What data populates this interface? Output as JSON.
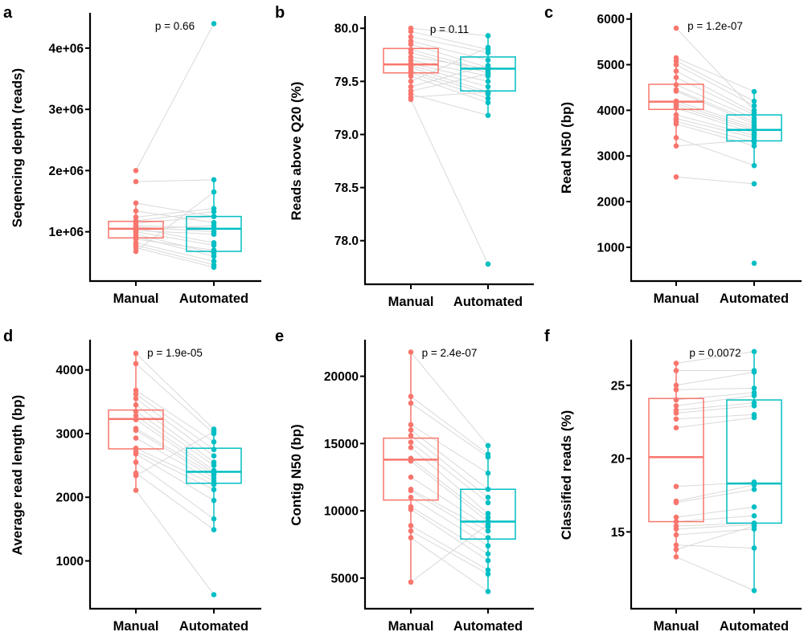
{
  "figure": {
    "colors": {
      "manual": "#F8766D",
      "automated": "#00BFC4",
      "pair_line": "#d9d9d9",
      "axis": "#000000"
    }
  },
  "chart_data": [
    {
      "panel": "a",
      "type": "box+paired-scatter",
      "ylabel": "Seqencing depth (reads)",
      "categories": [
        "Manual",
        "Automated"
      ],
      "ylim": [
        300000,
        4550000
      ],
      "yticks": [
        1000000,
        2000000,
        3000000,
        4000000
      ],
      "ytick_labels": [
        "1e+06",
        "2e+06",
        "3e+06",
        "4e+06"
      ],
      "p_value": "p = 0.66",
      "boxes": [
        {
          "name": "Manual",
          "q1": 900000,
          "median": 1050000,
          "q3": 1170000,
          "min": 680000,
          "max": 1470000
        },
        {
          "name": "Automated",
          "q1": 680000,
          "median": 1050000,
          "q3": 1250000,
          "min": 420000,
          "max": 1850000
        }
      ],
      "series": [
        {
          "name": "Manual",
          "values": [
            2000000,
            1820000,
            1470000,
            1340000,
            1240000,
            1180000,
            1140000,
            1100000,
            1080000,
            1060000,
            1040000,
            1020000,
            1000000,
            960000,
            920000,
            880000,
            820000,
            780000,
            740000,
            680000
          ]
        },
        {
          "name": "Automated",
          "values": [
            4400000,
            1850000,
            1250000,
            1150000,
            1380000,
            1330000,
            1250000,
            1060000,
            1000000,
            820000,
            1100000,
            960000,
            780000,
            650000,
            600000,
            700000,
            520000,
            460000,
            420000,
            1650000
          ]
        }
      ]
    },
    {
      "panel": "b",
      "type": "box+paired-scatter",
      "ylabel": "Reads above Q20 (%)",
      "categories": [
        "Manual",
        "Automated"
      ],
      "ylim": [
        77.65,
        80.1
      ],
      "yticks": [
        78.0,
        78.5,
        79.0,
        79.5,
        80.0
      ],
      "ytick_labels": [
        "78.0",
        "78.5",
        "79.0",
        "79.5",
        "80.0"
      ],
      "p_value": "p = 0.11",
      "boxes": [
        {
          "name": "Manual",
          "q1": 79.58,
          "median": 79.66,
          "q3": 79.81,
          "min": 79.33,
          "max": 80.0
        },
        {
          "name": "Automated",
          "q1": 79.41,
          "median": 79.62,
          "q3": 79.73,
          "min": 79.18,
          "max": 79.93
        }
      ],
      "series": [
        {
          "name": "Manual",
          "values": [
            80.0,
            79.97,
            79.92,
            79.88,
            79.85,
            79.8,
            79.77,
            79.73,
            79.7,
            79.67,
            79.65,
            79.63,
            79.6,
            79.58,
            79.55,
            79.5,
            79.45,
            79.41,
            79.38,
            79.35,
            79.33
          ]
        },
        {
          "name": "Automated",
          "values": [
            79.93,
            79.8,
            79.77,
            79.7,
            79.63,
            79.6,
            79.58,
            79.62,
            79.55,
            79.5,
            79.45,
            79.4,
            79.38,
            79.34,
            79.3,
            79.82,
            79.65,
            79.57,
            79.18,
            79.4,
            77.78
          ]
        }
      ]
    },
    {
      "panel": "c",
      "type": "box+paired-scatter",
      "ylabel": "Read N50 (bp)",
      "categories": [
        "Manual",
        "Automated"
      ],
      "ylim": [
        400,
        6100
      ],
      "yticks": [
        1000,
        2000,
        3000,
        4000,
        5000,
        6000
      ],
      "ytick_labels": [
        "1000",
        "2000",
        "3000",
        "4000",
        "5000",
        "6000"
      ],
      "p_value": "p = 1.2e-07",
      "boxes": [
        {
          "name": "Manual",
          "q1": 4020,
          "median": 4190,
          "q3": 4570,
          "min": 3220,
          "max": 5150
        },
        {
          "name": "Automated",
          "q1": 3330,
          "median": 3570,
          "q3": 3900,
          "min": 2790,
          "max": 4410
        }
      ],
      "series": [
        {
          "name": "Manual",
          "values": [
            5800,
            5150,
            5080,
            5000,
            4860,
            4720,
            4560,
            4450,
            4420,
            4200,
            4150,
            4100,
            4050,
            3900,
            3820,
            3760,
            3700,
            3400,
            3220,
            2540
          ]
        },
        {
          "name": "Automated",
          "values": [
            4000,
            4410,
            4200,
            4100,
            3950,
            3900,
            3820,
            3750,
            3700,
            3650,
            3600,
            3560,
            3500,
            3450,
            3400,
            3300,
            3220,
            2790,
            3350,
            2390,
            650
          ]
        }
      ]
    },
    {
      "panel": "d",
      "type": "box+paired-scatter",
      "ylabel": "Average read length (bp)",
      "categories": [
        "Manual",
        "Automated"
      ],
      "ylim": [
        350,
        4450
      ],
      "yticks": [
        1000,
        2000,
        3000,
        4000
      ],
      "ytick_labels": [
        "1000",
        "2000",
        "3000",
        "4000"
      ],
      "p_value": "p = 1.9e-05",
      "boxes": [
        {
          "name": "Manual",
          "q1": 2760,
          "median": 3230,
          "q3": 3370,
          "min": 2110,
          "max": 4260
        },
        {
          "name": "Automated",
          "q1": 2220,
          "median": 2400,
          "q3": 2770,
          "min": 1490,
          "max": 3070
        }
      ],
      "series": [
        {
          "name": "Manual",
          "values": [
            4260,
            4100,
            3680,
            3620,
            3550,
            3450,
            3350,
            3280,
            3220,
            3080,
            3050,
            2930,
            2770,
            2720,
            2680,
            2550,
            2380,
            2340,
            2110
          ]
        },
        {
          "name": "Automated",
          "values": [
            3070,
            3000,
            2870,
            2750,
            2650,
            2550,
            2500,
            2420,
            2380,
            2350,
            2300,
            2250,
            2200,
            2120,
            1950,
            1660,
            1490,
            3030,
            470
          ]
        }
      ]
    },
    {
      "panel": "e",
      "type": "box+paired-scatter",
      "ylabel": "Contig N50 (bp)",
      "categories": [
        "Manual",
        "Automated"
      ],
      "ylim": [
        3200,
        22600
      ],
      "yticks": [
        5000,
        10000,
        15000,
        20000
      ],
      "ytick_labels": [
        "5000",
        "10000",
        "15000",
        "20000"
      ],
      "p_value": "p = 2.4e-07",
      "boxes": [
        {
          "name": "Manual",
          "q1": 10800,
          "median": 13800,
          "q3": 15400,
          "min": 4700,
          "max": 21800
        },
        {
          "name": "Automated",
          "q1": 7900,
          "median": 9200,
          "q3": 11600,
          "min": 4000,
          "max": 14850
        }
      ],
      "series": [
        {
          "name": "Manual",
          "values": [
            21800,
            18500,
            18000,
            16400,
            16000,
            15600,
            15100,
            14700,
            13900,
            13700,
            12500,
            11600,
            11500,
            11000,
            10300,
            10100,
            8900,
            8500,
            8000,
            4700
          ]
        },
        {
          "name": "Automated",
          "values": [
            14850,
            14200,
            14000,
            12800,
            11600,
            11000,
            10600,
            9800,
            9500,
            9200,
            8800,
            8500,
            8000,
            7400,
            6800,
            6300,
            5600,
            5300,
            4000,
            9000
          ]
        }
      ]
    },
    {
      "panel": "f",
      "type": "box+paired-scatter",
      "ylabel": "Classified reads (%)",
      "categories": [
        "Manual",
        "Automated"
      ],
      "ylim": [
        10.2,
        28.0
      ],
      "yticks": [
        15,
        20,
        25
      ],
      "ytick_labels": [
        "15",
        "20",
        "25"
      ],
      "p_value": "p = 0.0072",
      "boxes": [
        {
          "name": "Manual",
          "q1": 15.7,
          "median": 20.1,
          "q3": 24.1,
          "min": 13.3,
          "max": 26.5
        },
        {
          "name": "Automated",
          "q1": 15.6,
          "median": 18.3,
          "q3": 24.0,
          "min": 11.0,
          "max": 27.3
        }
      ],
      "series": [
        {
          "name": "Manual",
          "values": [
            26.5,
            26.0,
            25.0,
            24.7,
            24.0,
            23.6,
            23.3,
            23.1,
            22.7,
            22.1,
            18.1,
            17.1,
            17.0,
            16.0,
            15.7,
            15.4,
            15.2,
            14.8,
            14.1,
            13.8,
            13.3
          ]
        },
        {
          "name": "Automated",
          "values": [
            27.3,
            26.0,
            25.9,
            24.8,
            24.5,
            24.3,
            23.8,
            23.6,
            23.0,
            22.8,
            18.4,
            18.2,
            17.9,
            16.7,
            16.1,
            15.6,
            15.5,
            15.2,
            13.9,
            15.4,
            11.0
          ]
        }
      ]
    }
  ]
}
